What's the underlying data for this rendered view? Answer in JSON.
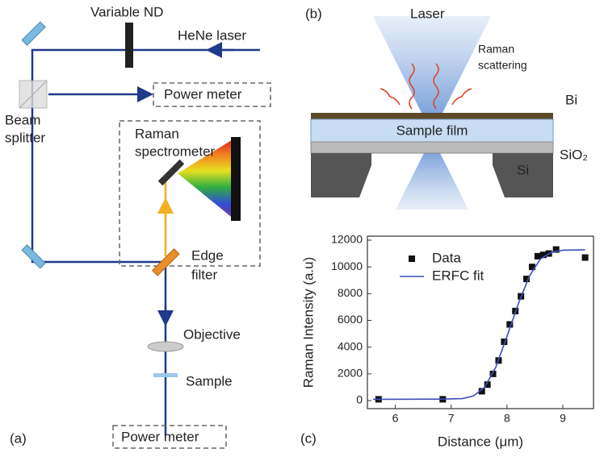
{
  "panel_a": {
    "tag": "(a)",
    "variable_nd": "Variable ND",
    "laser": "HeNe laser",
    "power_meter_top": "Power meter",
    "beam_splitter": [
      "Beam",
      "splitter"
    ],
    "spectrometer": [
      "Raman",
      "spectrometer"
    ],
    "edge_filter": [
      "Edge",
      "filter"
    ],
    "objective": "Objective",
    "sample": "Sample",
    "power_meter_bottom": "Power meter"
  },
  "panel_b": {
    "tag": "(b)",
    "laser": "Laser",
    "raman": [
      "Raman",
      "scattering"
    ],
    "bi": "Bi",
    "film": "Sample film",
    "sio2": "SiO₂",
    "si": "Si"
  },
  "chart_data": {
    "type": "scatter",
    "tag": "(c)",
    "xlabel": "Distance (μm)",
    "ylabel": "Raman Intensity (a.u)",
    "xlim": [
      5.5,
      9.55
    ],
    "ylim": [
      -600,
      12300
    ],
    "xticks": [
      6,
      7,
      8,
      9
    ],
    "yticks": [
      0,
      2000,
      4000,
      6000,
      8000,
      10000,
      12000
    ],
    "legend": "upper left",
    "series": [
      {
        "name": "Data",
        "type": "scatter",
        "color": "#111111",
        "x": [
          5.7,
          6.85,
          7.55,
          7.65,
          7.75,
          7.85,
          7.95,
          8.05,
          8.15,
          8.25,
          8.35,
          8.45,
          8.55,
          8.65,
          8.75,
          8.88,
          9.4
        ],
        "values": [
          100,
          100,
          700,
          1200,
          2000,
          3000,
          4400,
          5700,
          6700,
          7800,
          9100,
          10000,
          10800,
          10900,
          11000,
          11300,
          10700
        ]
      },
      {
        "name": "ERFC fit",
        "type": "line",
        "color": "#3a4fbf",
        "x": [
          5.6,
          6.8,
          7.2,
          7.4,
          7.6,
          7.8,
          8.0,
          8.1,
          8.2,
          8.4,
          8.6,
          8.8,
          9.0,
          9.4
        ],
        "values": [
          100,
          110,
          150,
          350,
          1000,
          2500,
          4800,
          6000,
          7200,
          9300,
          10600,
          11100,
          11250,
          11280
        ]
      }
    ]
  }
}
